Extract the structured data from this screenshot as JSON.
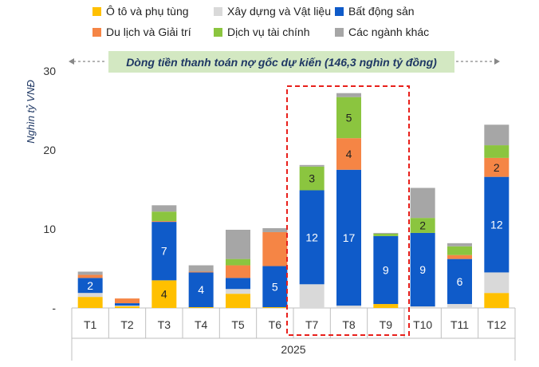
{
  "chart_data": {
    "type": "bar",
    "stacked": true,
    "categories": [
      "T1",
      "T2",
      "T3",
      "T4",
      "T5",
      "T6",
      "T7",
      "T8",
      "T9",
      "T10",
      "T11",
      "T12"
    ],
    "x_group_label": "2025",
    "ylabel": "Nghìn tỷ VNĐ",
    "ylim": [
      0,
      30
    ],
    "y_ticks": [
      "-",
      "10",
      "20",
      "30"
    ],
    "banner": "Dòng tiền thanh toán nợ gốc dự kiến (146,3 nghìn tỷ đồng)",
    "highlight": [
      "T7",
      "T8",
      "T9"
    ],
    "legend_position": "top",
    "series": [
      {
        "name": "Ô tô và phụ tùng",
        "color": "#FFC000",
        "values": [
          1.4,
          0.2,
          3.5,
          0.1,
          1.8,
          0.1,
          0.0,
          0.0,
          0.5,
          0.0,
          0.0,
          1.9
        ]
      },
      {
        "name": "Xây dựng và Vật liệu",
        "color": "#D9D9D9",
        "values": [
          0.5,
          0.1,
          0.0,
          0.0,
          0.6,
          0.0,
          3.0,
          0.3,
          0.0,
          0.2,
          0.5,
          2.6
        ]
      },
      {
        "name": "Bất động sản",
        "color": "#0F5BC9",
        "values": [
          1.9,
          0.3,
          7.4,
          4.4,
          1.4,
          5.2,
          11.9,
          17.2,
          8.6,
          9.3,
          5.7,
          12.1
        ]
      },
      {
        "name": "Du lịch và Giải trí",
        "color": "#F58545",
        "values": [
          0.4,
          0.6,
          0.1,
          0.1,
          1.6,
          4.3,
          0.0,
          4.0,
          0.0,
          0.0,
          0.5,
          2.4
        ]
      },
      {
        "name": "Dịch vụ tài chính",
        "color": "#8BC53F",
        "values": [
          0.0,
          0.0,
          1.2,
          0.0,
          0.8,
          0.0,
          3.0,
          5.2,
          0.3,
          1.9,
          1.1,
          1.6
        ]
      },
      {
        "name": "Các ngành khác",
        "color": "#A6A6A6",
        "values": [
          0.4,
          0.0,
          0.8,
          0.8,
          3.7,
          0.5,
          0.2,
          0.5,
          0.1,
          3.8,
          0.4,
          2.6
        ]
      }
    ],
    "data_labels": [
      {
        "category": "T1",
        "series": "Bất động sản",
        "text": "2"
      },
      {
        "category": "T3",
        "series": "Ô tô và phụ tùng",
        "text": "4"
      },
      {
        "category": "T3",
        "series": "Bất động sản",
        "text": "7"
      },
      {
        "category": "T4",
        "series": "Bất động sản",
        "text": "4"
      },
      {
        "category": "T6",
        "series": "Bất động sản",
        "text": "5"
      },
      {
        "category": "T7",
        "series": "Bất động sản",
        "text": "12"
      },
      {
        "category": "T7",
        "series": "Dịch vụ tài chính",
        "text": "3"
      },
      {
        "category": "T8",
        "series": "Bất động sản",
        "text": "17"
      },
      {
        "category": "T8",
        "series": "Du lịch và Giải trí",
        "text": "4"
      },
      {
        "category": "T8",
        "series": "Dịch vụ tài chính",
        "text": "5"
      },
      {
        "category": "T9",
        "series": "Bất động sản",
        "text": "9"
      },
      {
        "category": "T10",
        "series": "Bất động sản",
        "text": "9"
      },
      {
        "category": "T10",
        "series": "Dịch vụ tài chính",
        "text": "2"
      },
      {
        "category": "T11",
        "series": "Bất động sản",
        "text": "6"
      },
      {
        "category": "T12",
        "series": "Bất động sản",
        "text": "12"
      },
      {
        "category": "T12",
        "series": "Du lịch và Giải trí",
        "text": "2"
      }
    ],
    "grid": false
  }
}
